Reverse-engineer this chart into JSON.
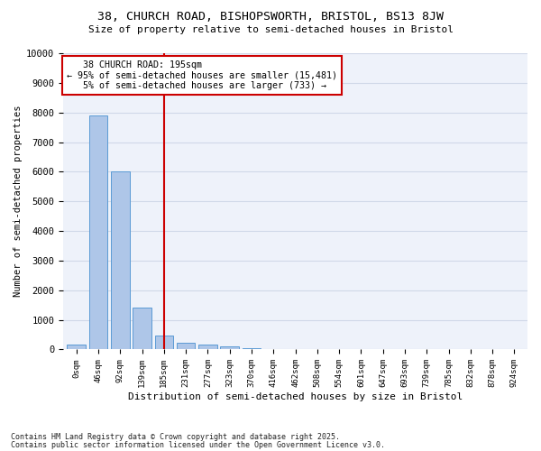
{
  "title_line1": "38, CHURCH ROAD, BISHOPSWORTH, BRISTOL, BS13 8JW",
  "title_line2": "Size of property relative to semi-detached houses in Bristol",
  "xlabel": "Distribution of semi-detached houses by size in Bristol",
  "ylabel": "Number of semi-detached properties",
  "bar_labels": [
    "0sqm",
    "46sqm",
    "92sqm",
    "139sqm",
    "185sqm",
    "231sqm",
    "277sqm",
    "323sqm",
    "370sqm",
    "416sqm",
    "462sqm",
    "508sqm",
    "554sqm",
    "601sqm",
    "647sqm",
    "693sqm",
    "739sqm",
    "785sqm",
    "832sqm",
    "878sqm",
    "924sqm"
  ],
  "bar_values": [
    170,
    7900,
    6000,
    1400,
    480,
    230,
    170,
    100,
    50,
    15,
    5,
    2,
    1,
    0,
    0,
    0,
    0,
    0,
    0,
    0,
    0
  ],
  "bar_color": "#aec6e8",
  "bar_edge_color": "#5b9bd5",
  "property_label": "38 CHURCH ROAD: 195sqm",
  "pct_smaller": 95,
  "n_smaller": "15,481",
  "pct_larger": 5,
  "n_larger": 733,
  "vline_color": "#cc0000",
  "annotation_box_color": "#cc0000",
  "ylim": [
    0,
    10000
  ],
  "yticks": [
    0,
    1000,
    2000,
    3000,
    4000,
    5000,
    6000,
    7000,
    8000,
    9000,
    10000
  ],
  "ytick_labels": [
    "0",
    "1000",
    "2000",
    "3000",
    "4000",
    "5000",
    "6000",
    "7000",
    "8000",
    "9000",
    "10000"
  ],
  "grid_color": "#d0d8e8",
  "background_color": "#eef2fa",
  "footer_line1": "Contains HM Land Registry data © Crown copyright and database right 2025.",
  "footer_line2": "Contains public sector information licensed under the Open Government Licence v3.0.",
  "vline_x_bin": 4
}
